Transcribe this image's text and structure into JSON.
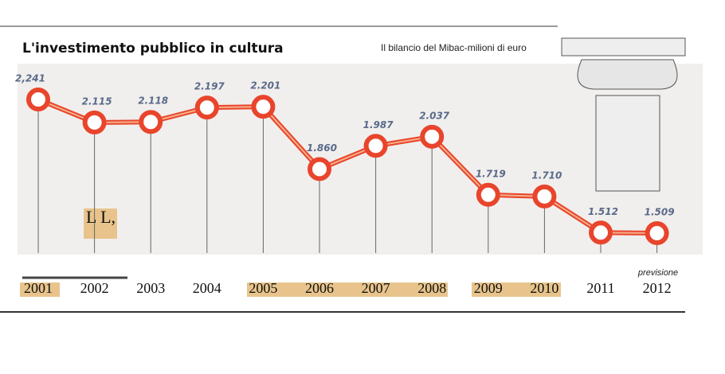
{
  "chart_data": {
    "type": "line",
    "title": "L'investimento pubblico in cultura",
    "subtitle": "Il bilancio del Mibac-milioni di euro",
    "annotations": [
      "previsione",
      "L L,"
    ],
    "categories": [
      "2001",
      "2002",
      "2003",
      "2004",
      "2005",
      "2006",
      "2007",
      "2008",
      "2009",
      "2010",
      "2011",
      "2012"
    ],
    "series": [
      {
        "name": "Investimento",
        "color": "#e8452c",
        "values": [
          2241,
          2115,
          2118,
          2197,
          2201,
          1860,
          1987,
          2037,
          1719,
          1710,
          1512,
          1509
        ],
        "value_labels": [
          "2,241",
          "2.115",
          "2.118",
          "2.197",
          "2.201",
          "1.860",
          "1.987",
          "2.037",
          "1.719",
          "1.710",
          "1.512",
          "1.509"
        ]
      }
    ]
  }
}
